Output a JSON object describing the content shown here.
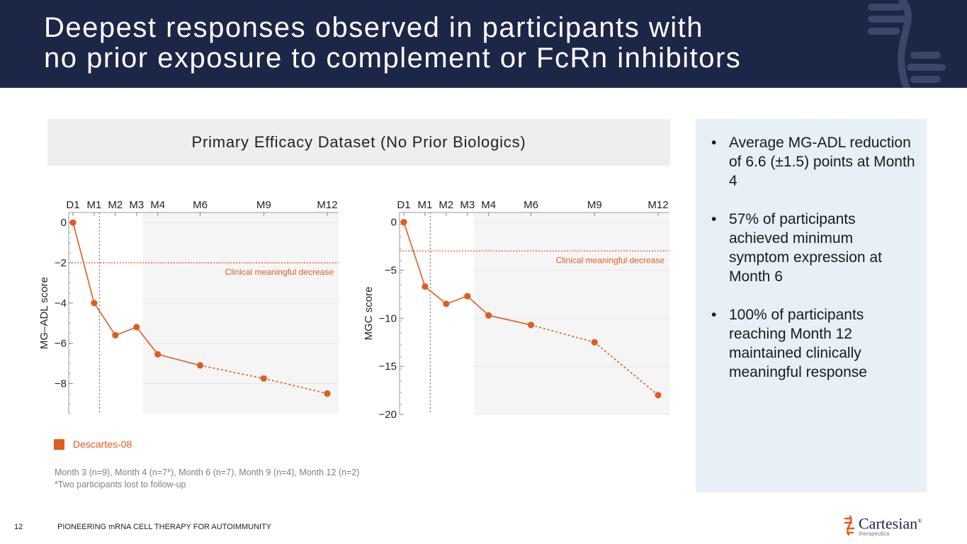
{
  "slide": {
    "title_lines": [
      "Deepest responses observed in participants with",
      "no prior exposure to complement or FcRn inhibitors"
    ],
    "dataset_title": "Primary Efficacy Dataset (No Prior Biologics)",
    "legend_label": "Descartes-08",
    "footnotes": [
      "Month 3 (n=9), Month 4 (n=7*), Month 6 (n=7), Month 9 (n=4), Month 12 (n=2)",
      "*Two participants lost to follow-up"
    ],
    "bullets": [
      "Average MG-ADL reduction of 6.6 (±1.5) points at Month 4",
      "57% of participants achieved minimum symptom expression at Month 6",
      "100% of participants reaching Month 12 maintained clinically meaningful response"
    ],
    "page_number": "12",
    "footer_text": "PIONEERING mRNA CELL THERAPY FOR AUTOIMMUNITY",
    "logo": {
      "name": "Cartesian",
      "mark": "®",
      "subtitle": "therapeutics"
    }
  },
  "colors": {
    "navy": "#1c2748",
    "orange": "#e05c1f",
    "panel": "#e7f0f7",
    "banner": "#eeeeee"
  },
  "chart_data": [
    {
      "type": "line",
      "series": [
        {
          "name": "Descartes-08",
          "color": "#e05c1f"
        }
      ],
      "x": [
        0,
        1,
        2,
        3,
        4,
        6,
        9,
        12
      ],
      "x_tick_labels": [
        "D1",
        "M1",
        "M2",
        "M3",
        "M4",
        "M6",
        "M9",
        "M12"
      ],
      "values": [
        0,
        -4,
        -5.6,
        -5.2,
        -6.55,
        -7.1,
        -7.75,
        -8.5
      ],
      "dashed_from_index": 5,
      "ylabel": "MG–ADL score",
      "ylim": [
        -9.5,
        0.5
      ],
      "yticks": [
        0,
        -2,
        -4,
        -6,
        -8
      ],
      "threshold": {
        "value": -2,
        "label": "Clinical meaningful decrease"
      },
      "vertical_ref_x": 1.25,
      "shaded_from_x": 3.3
    },
    {
      "type": "line",
      "series": [
        {
          "name": "Descartes-08",
          "color": "#e05c1f"
        }
      ],
      "x": [
        0,
        1,
        2,
        3,
        4,
        6,
        9,
        12
      ],
      "x_tick_labels": [
        "D1",
        "M1",
        "M2",
        "M3",
        "M4",
        "M6",
        "M9",
        "M12"
      ],
      "values": [
        0,
        -6.7,
        -8.5,
        -7.7,
        -9.7,
        -10.7,
        -12.5,
        -18
      ],
      "dashed_from_index": 5,
      "ylabel": "MGC score",
      "ylim": [
        -20,
        1
      ],
      "yticks": [
        0,
        -5,
        -10,
        -15,
        -20
      ],
      "threshold": {
        "value": -3,
        "label": "Clinical meaningful decrease"
      },
      "vertical_ref_x": 1.25,
      "shaded_from_x": 3.3
    }
  ]
}
